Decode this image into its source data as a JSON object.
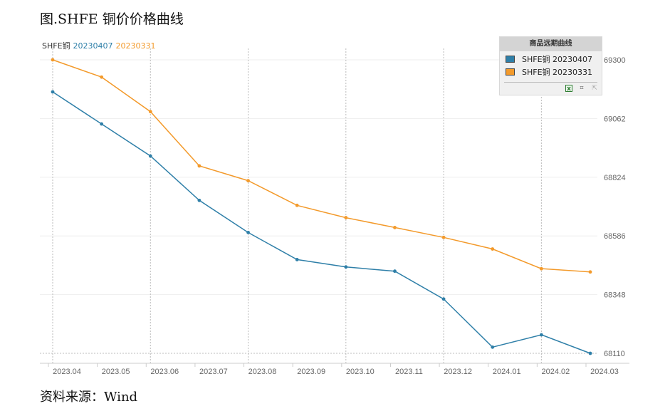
{
  "figure": {
    "title": "图.SHFE 铜价价格曲线",
    "source": "资料来源：Wind"
  },
  "legend_top": {
    "prefix": "SHFE铜",
    "series_a": "20230407",
    "series_b": "20230331"
  },
  "panel": {
    "title": "商品远期曲线",
    "items": [
      {
        "label": "SHFE铜 20230407",
        "color": "#2e7fa8"
      },
      {
        "label": "SHFE铜 20230331",
        "color": "#f39a2b"
      }
    ],
    "tools": [
      "excel-icon",
      "crop-icon",
      "export-icon"
    ]
  },
  "chart_data": {
    "type": "line",
    "title": "",
    "xlabel": "",
    "ylabel": "",
    "x_ticks": [
      "2023.04",
      "2023.05",
      "2023.06",
      "2023.07",
      "2023.08",
      "2023.09",
      "2023.10",
      "2023.11",
      "2023.12",
      "2024.01",
      "2024.02",
      "2024.03"
    ],
    "y_ticks": [
      69300,
      69062,
      68824,
      68586,
      68348,
      68110
    ],
    "ylim": [
      68110,
      69300
    ],
    "y_axis_side": "right",
    "grid": true,
    "series": [
      {
        "name": "SHFE铜 20230407",
        "color": "#2e7fa8",
        "x": [
          "2023.04",
          "2023.05",
          "2023.06",
          "2023.07",
          "2023.08",
          "2023.09",
          "2023.10",
          "2023.11",
          "2023.12",
          "2024.01",
          "2024.02",
          "2024.03"
        ],
        "values": [
          69170,
          69040,
          68910,
          68730,
          68600,
          68490,
          68460,
          68443,
          68330,
          68135,
          68185,
          68110
        ]
      },
      {
        "name": "SHFE铜 20230331",
        "color": "#f39a2b",
        "x": [
          "2023.04",
          "2023.05",
          "2023.06",
          "2023.07",
          "2023.08",
          "2023.09",
          "2023.10",
          "2023.11",
          "2023.12",
          "2024.01",
          "2024.02",
          "2024.03"
        ],
        "values": [
          69300,
          69230,
          69090,
          68870,
          68810,
          68710,
          68660,
          68620,
          68580,
          68533,
          68453,
          68440
        ]
      }
    ]
  }
}
